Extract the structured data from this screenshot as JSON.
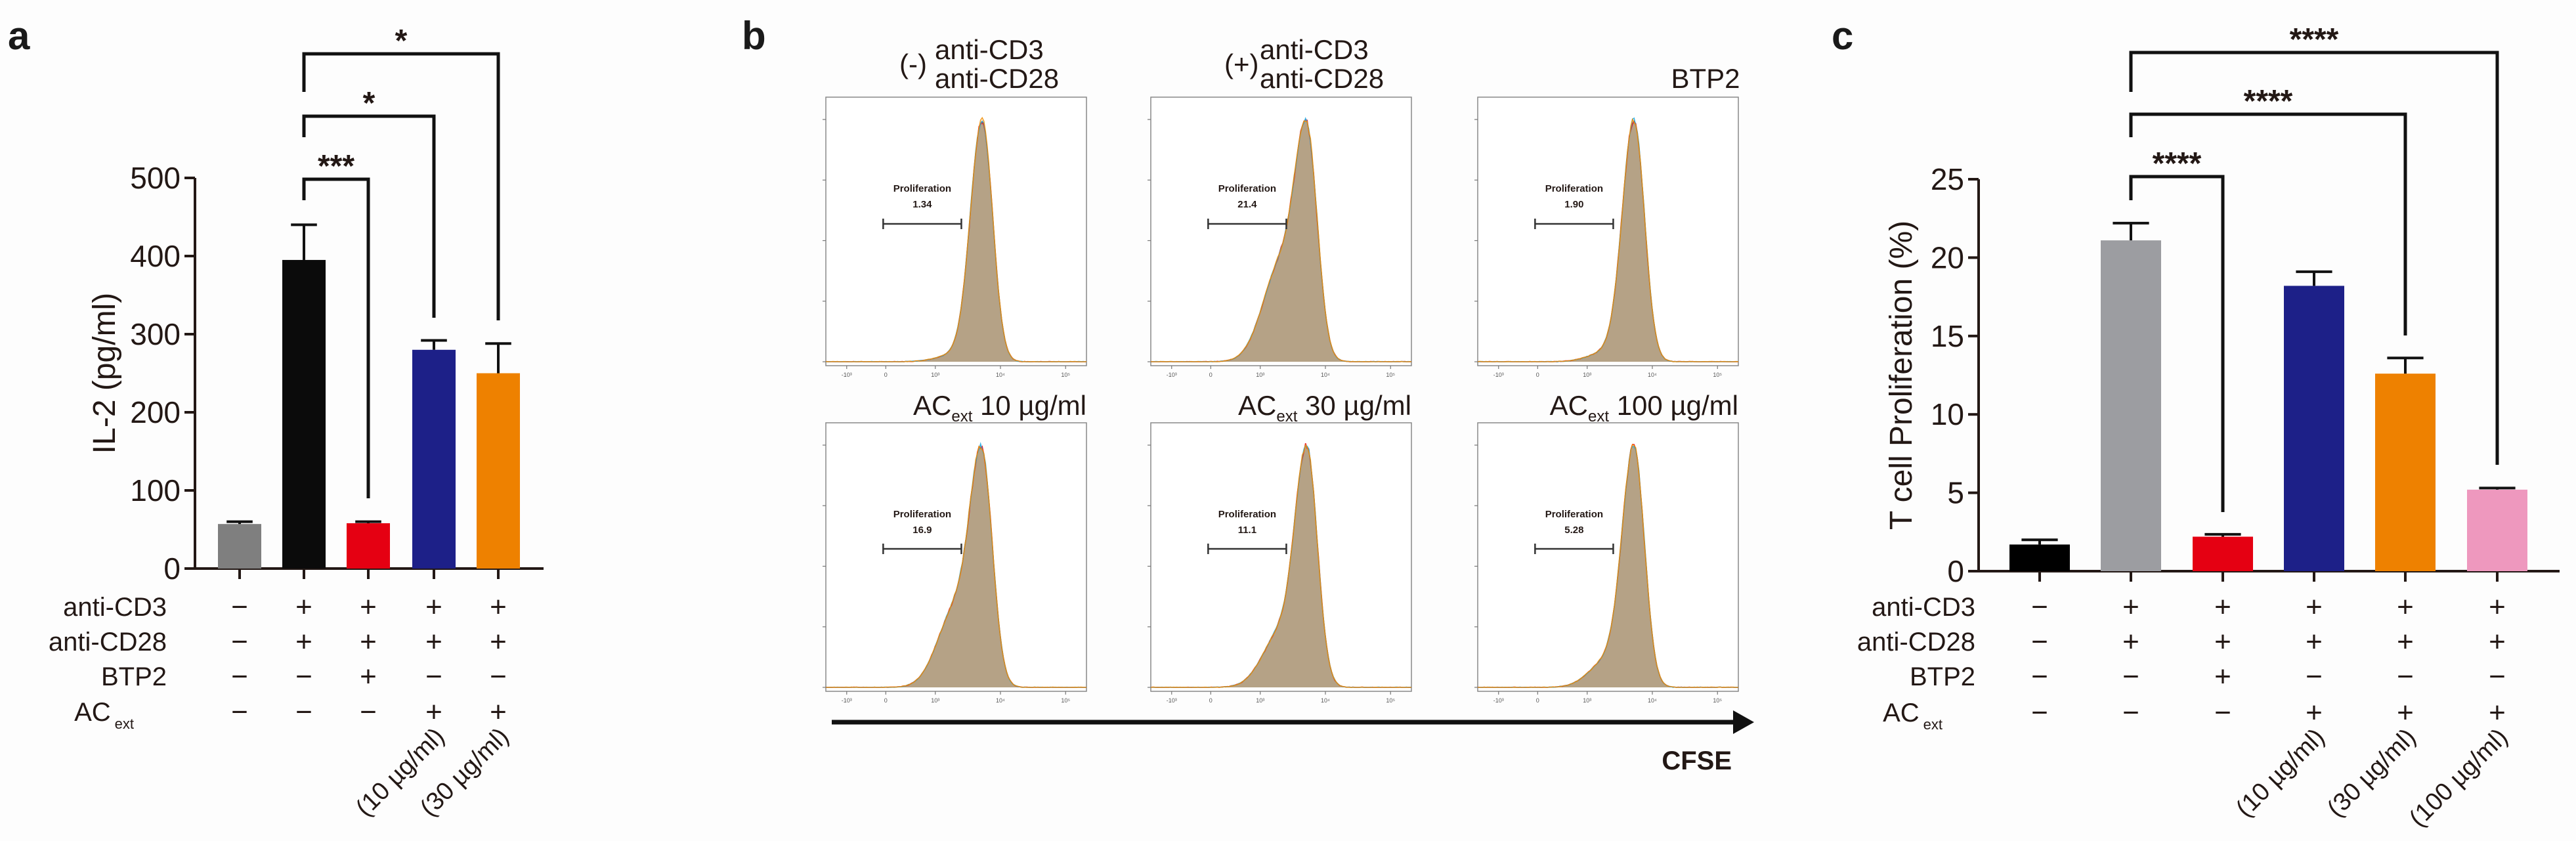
{
  "chart_data": [
    {
      "type": "bar",
      "panel_label": "a",
      "ylabel": "IL-2 (pg/ml)",
      "ylim": [
        0,
        500
      ],
      "yticks": [
        "0",
        "100",
        "200",
        "300",
        "400",
        "500"
      ],
      "values": [
        57,
        395,
        58,
        280,
        250
      ],
      "error_upper": [
        60,
        440,
        60,
        292,
        288
      ],
      "colors": [
        "#7f7f7f",
        "#0b0b0b",
        "#e50012",
        "#1d2088",
        "#ee8100"
      ],
      "condition_rows": [
        {
          "label": "anti-CD3",
          "sub": "",
          "marks": [
            "−",
            "+",
            "+",
            "+",
            "+"
          ]
        },
        {
          "label": "anti-CD28",
          "sub": "",
          "marks": [
            "−",
            "+",
            "+",
            "+",
            "+"
          ]
        },
        {
          "label": "BTP2",
          "sub": "",
          "marks": [
            "−",
            "−",
            "+",
            "−",
            "−"
          ]
        },
        {
          "label": "AC",
          "sub": "ext",
          "marks": [
            "−",
            "−",
            "−",
            "+",
            "+"
          ]
        }
      ],
      "concentrations": [
        "",
        "",
        "",
        "(10 µg/ml)",
        "(30 µg/ml)"
      ],
      "significance": [
        {
          "from": 1,
          "to": 2,
          "label": "***"
        },
        {
          "from": 1,
          "to": 3,
          "label": "*"
        },
        {
          "from": 1,
          "to": 4,
          "label": "*"
        }
      ]
    },
    {
      "type": "histogram",
      "panel_label": "b",
      "x_axis_label": "CFSE",
      "gate_label": "Proliferation",
      "x_ticks": [
        "-10³",
        "0",
        "10³",
        "10⁴",
        "10⁵"
      ],
      "series_colors": [
        "#e60012",
        "#1aa7e0",
        "#f08c00"
      ],
      "fill_color": "#b5a286",
      "panels": [
        {
          "prefix": "(-)",
          "line1": "anti-CD3",
          "line2": "anti-CD28",
          "proliferation": "1.34"
        },
        {
          "prefix": "(+)",
          "line1": "anti-CD3",
          "line2": "anti-CD28",
          "proliferation": "21.4"
        },
        {
          "line2": "BTP2",
          "proliferation": "1.90"
        },
        {
          "main": "AC",
          "sub": "ext",
          "dose": " 10 µg/ml",
          "proliferation": "16.9"
        },
        {
          "main": "AC",
          "sub": "ext",
          "dose": " 30 µg/ml",
          "proliferation": "11.1"
        },
        {
          "main": "AC",
          "sub": "ext",
          "dose": " 100 µg/ml",
          "proliferation": "5.28"
        }
      ]
    },
    {
      "type": "bar",
      "panel_label": "c",
      "ylabel": "T cell Proliferation (%)",
      "ylim": [
        0,
        25
      ],
      "yticks": [
        "0",
        "5",
        "10",
        "15",
        "20",
        "25"
      ],
      "values": [
        1.7,
        21.1,
        2.2,
        18.2,
        12.6,
        5.2
      ],
      "error_upper": [
        2.0,
        22.2,
        2.35,
        19.1,
        13.6,
        5.3
      ],
      "colors": [
        "#000000",
        "#9c9da1",
        "#e50012",
        "#1d2088",
        "#ee8100",
        "#ee98be"
      ],
      "condition_rows": [
        {
          "label": "anti-CD3",
          "sub": "",
          "marks": [
            "−",
            "+",
            "+",
            "+",
            "+",
            "+"
          ]
        },
        {
          "label": "anti-CD28",
          "sub": "",
          "marks": [
            "−",
            "+",
            "+",
            "+",
            "+",
            "+"
          ]
        },
        {
          "label": "BTP2",
          "sub": "",
          "marks": [
            "−",
            "−",
            "+",
            "−",
            "−",
            "−"
          ]
        },
        {
          "label": "AC",
          "sub": "ext",
          "marks": [
            "−",
            "−",
            "−",
            "+",
            "+",
            "+"
          ]
        }
      ],
      "concentrations": [
        "",
        "",
        "",
        "(10 µg/ml)",
        "(30 µg/ml)",
        "(100 µg/ml)"
      ],
      "significance": [
        {
          "from": 1,
          "to": 2,
          "label": "****"
        },
        {
          "from": 1,
          "to": 4,
          "label": "****"
        },
        {
          "from": 1,
          "to": 5,
          "label": "****"
        }
      ]
    }
  ]
}
